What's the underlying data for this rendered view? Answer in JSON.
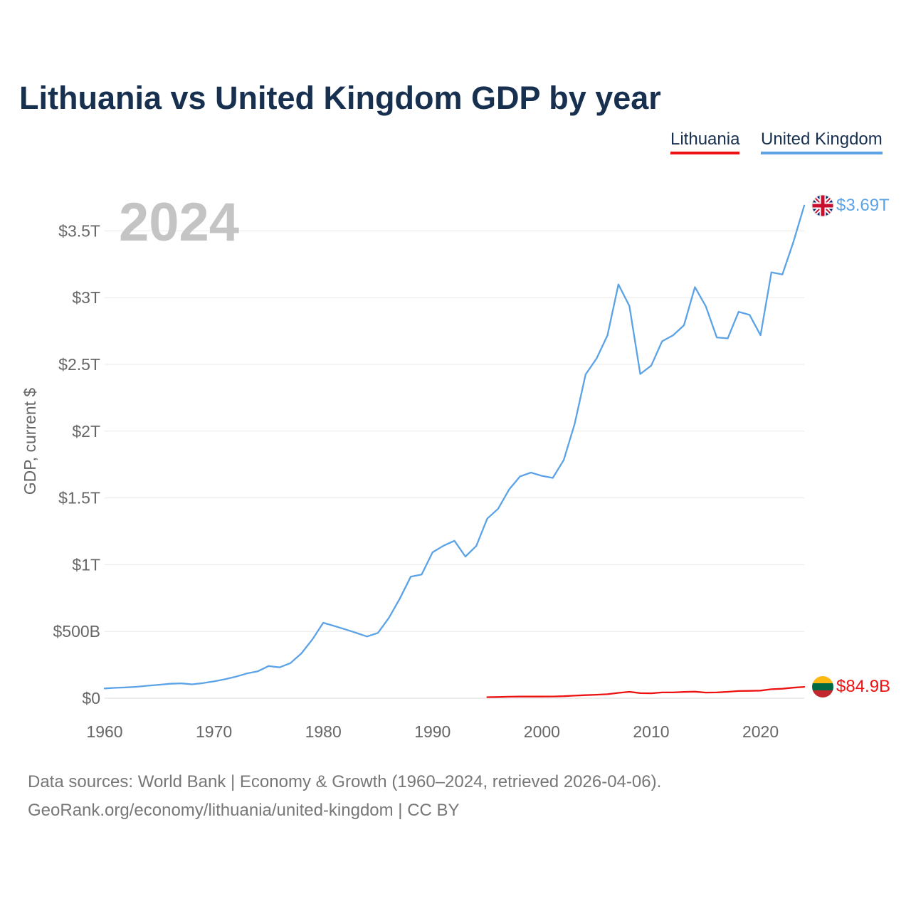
{
  "chart_data": {
    "type": "line",
    "title": "Lithuania vs United Kingdom GDP by year",
    "ylabel": "GDP, current $",
    "xlabel": "",
    "year_label": "2024",
    "xlim": [
      1960,
      2024
    ],
    "ylim": [
      0,
      3.9
    ],
    "y_units": "trillions USD",
    "x_ticks": [
      {
        "value": 1960,
        "label": "1960"
      },
      {
        "value": 1970,
        "label": "1970"
      },
      {
        "value": 1980,
        "label": "1980"
      },
      {
        "value": 1990,
        "label": "1990"
      },
      {
        "value": 2000,
        "label": "2000"
      },
      {
        "value": 2010,
        "label": "2010"
      },
      {
        "value": 2020,
        "label": "2020"
      }
    ],
    "y_ticks": [
      {
        "value": 0,
        "label": "$0"
      },
      {
        "value": 0.5,
        "label": "$500B"
      },
      {
        "value": 1.0,
        "label": "$1T"
      },
      {
        "value": 1.5,
        "label": "$1.5T"
      },
      {
        "value": 2.0,
        "label": "$2T"
      },
      {
        "value": 2.5,
        "label": "$2.5T"
      },
      {
        "value": 3.0,
        "label": "$3T"
      },
      {
        "value": 3.5,
        "label": "$3.5T"
      }
    ],
    "grid": true,
    "legend_position": "top-right",
    "series": [
      {
        "name": "Lithuania",
        "color": "#ee1111",
        "end_label": "$84.9B",
        "flag": "lithuania-flag",
        "x": [
          1995,
          1996,
          1997,
          1998,
          1999,
          2000,
          2001,
          2002,
          2003,
          2004,
          2005,
          2006,
          2007,
          2008,
          2009,
          2010,
          2011,
          2012,
          2013,
          2014,
          2015,
          2016,
          2017,
          2018,
          2019,
          2020,
          2021,
          2022,
          2023,
          2024
        ],
        "values": [
          0.008,
          0.009,
          0.011,
          0.012,
          0.012,
          0.012,
          0.013,
          0.015,
          0.019,
          0.023,
          0.026,
          0.03,
          0.04,
          0.048,
          0.038,
          0.037,
          0.043,
          0.043,
          0.047,
          0.049,
          0.042,
          0.043,
          0.048,
          0.054,
          0.055,
          0.057,
          0.067,
          0.071,
          0.079,
          0.085
        ]
      },
      {
        "name": "United Kingdom",
        "color": "#5ba3e6",
        "end_label": "$3.69T",
        "flag": "uk-flag",
        "x": [
          1960,
          1961,
          1962,
          1963,
          1964,
          1965,
          1966,
          1967,
          1968,
          1969,
          1970,
          1971,
          1972,
          1973,
          1974,
          1975,
          1976,
          1977,
          1978,
          1979,
          1980,
          1981,
          1982,
          1983,
          1984,
          1985,
          1986,
          1987,
          1988,
          1989,
          1990,
          1991,
          1992,
          1993,
          1994,
          1995,
          1996,
          1997,
          1998,
          1999,
          2000,
          2001,
          2002,
          2003,
          2004,
          2005,
          2006,
          2007,
          2008,
          2009,
          2010,
          2011,
          2012,
          2013,
          2014,
          2015,
          2016,
          2017,
          2018,
          2019,
          2020,
          2021,
          2022,
          2023,
          2024
        ],
        "values": [
          0.073,
          0.078,
          0.081,
          0.086,
          0.094,
          0.101,
          0.108,
          0.111,
          0.104,
          0.113,
          0.126,
          0.142,
          0.161,
          0.185,
          0.201,
          0.241,
          0.231,
          0.263,
          0.336,
          0.439,
          0.565,
          0.541,
          0.516,
          0.49,
          0.462,
          0.489,
          0.601,
          0.745,
          0.91,
          0.926,
          1.093,
          1.142,
          1.179,
          1.061,
          1.14,
          1.345,
          1.419,
          1.563,
          1.661,
          1.69,
          1.665,
          1.65,
          1.784,
          2.056,
          2.425,
          2.544,
          2.717,
          3.099,
          2.938,
          2.428,
          2.491,
          2.673,
          2.718,
          2.793,
          3.079,
          2.934,
          2.702,
          2.695,
          2.894,
          2.871,
          2.718,
          3.19,
          3.174,
          3.414,
          3.69
        ]
      }
    ]
  },
  "sources": {
    "line1": "Data sources: World Bank | Economy & Growth (1960–2024, retrieved 2026-04-06).",
    "line2": "GeoRank.org/economy/lithuania/united-kingdom | CC BY"
  }
}
